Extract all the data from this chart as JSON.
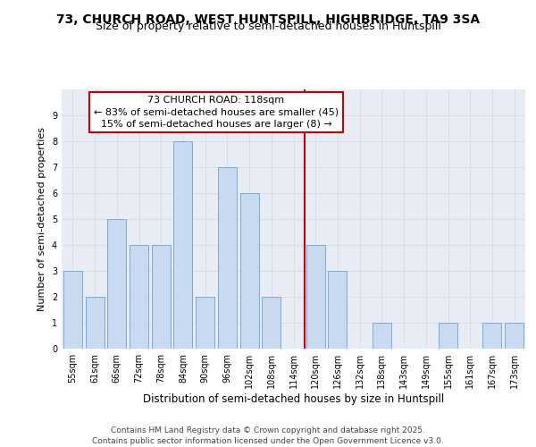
{
  "title1": "73, CHURCH ROAD, WEST HUNTSPILL, HIGHBRIDGE, TA9 3SA",
  "title2": "Size of property relative to semi-detached houses in Huntspill",
  "xlabel": "Distribution of semi-detached houses by size in Huntspill",
  "ylabel": "Number of semi-detached properties",
  "categories": [
    "55sqm",
    "61sqm",
    "66sqm",
    "72sqm",
    "78sqm",
    "84sqm",
    "90sqm",
    "96sqm",
    "102sqm",
    "108sqm",
    "114sqm",
    "120sqm",
    "126sqm",
    "132sqm",
    "138sqm",
    "143sqm",
    "149sqm",
    "155sqm",
    "161sqm",
    "167sqm",
    "173sqm"
  ],
  "values": [
    3,
    2,
    5,
    4,
    4,
    8,
    2,
    7,
    6,
    2,
    0,
    4,
    3,
    0,
    1,
    0,
    0,
    1,
    0,
    1,
    1
  ],
  "bar_color": "#c8d9f0",
  "bar_edge_color": "#7aaadc",
  "vline_x_index": 11,
  "vline_color": "#cc0000",
  "annotation_title": "73 CHURCH ROAD: 118sqm",
  "annotation_line1": "← 83% of semi-detached houses are smaller (45)",
  "annotation_line2": "15% of semi-detached houses are larger (8) →",
  "annotation_box_color": "#cc0000",
  "annotation_bg_color": "#ffffff",
  "ylim": [
    0,
    10
  ],
  "yticks": [
    0,
    1,
    2,
    3,
    4,
    5,
    6,
    7,
    8,
    9,
    10
  ],
  "grid_color": "#d4dce8",
  "bg_color": "#e8edf5",
  "footer": "Contains HM Land Registry data © Crown copyright and database right 2025.\nContains public sector information licensed under the Open Government Licence v3.0.",
  "title_fontsize": 10,
  "subtitle_fontsize": 9,
  "xlabel_fontsize": 8.5,
  "ylabel_fontsize": 8,
  "tick_fontsize": 7,
  "annotation_fontsize": 8,
  "footer_fontsize": 6.5
}
